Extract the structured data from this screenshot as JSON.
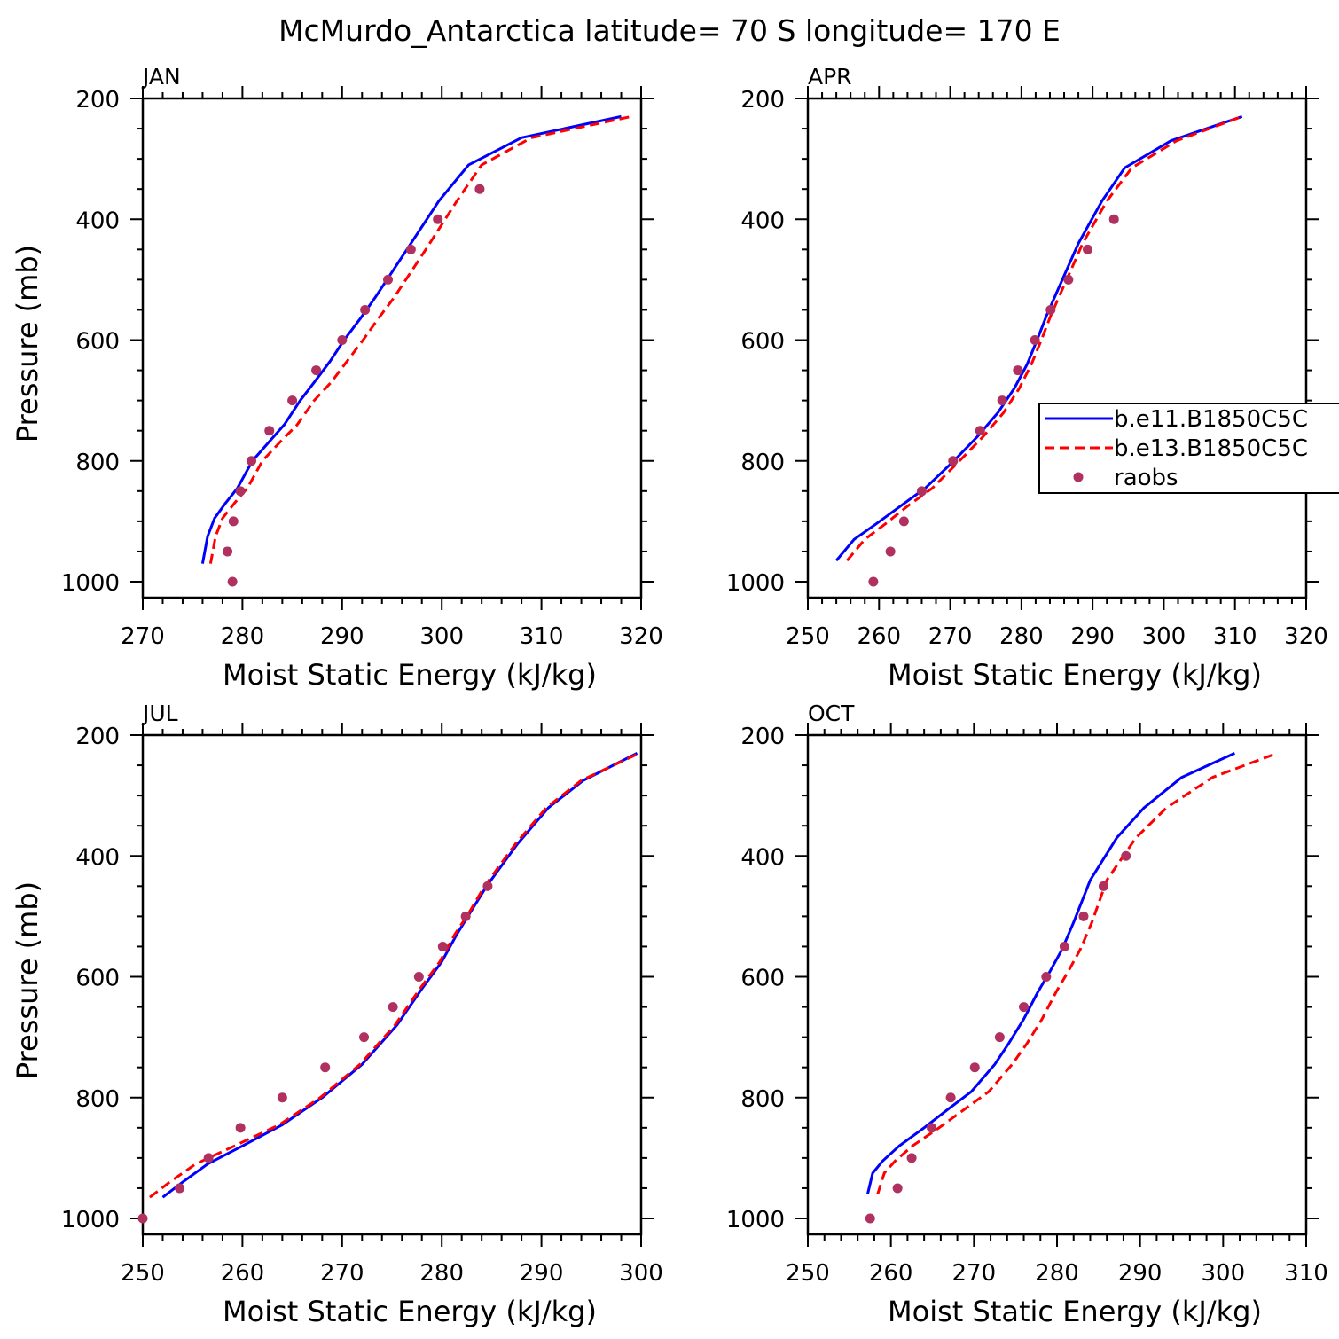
{
  "title": "McMurdo_Antarctica  latitude= 70 S longitude= 170 E",
  "legend": {
    "entries": [
      {
        "label": "b.e11.B1850C5C",
        "color": "#0000ff",
        "style": "solid"
      },
      {
        "label": "b.e13.B1850C5C",
        "color": "#ff0000",
        "style": "dashed"
      },
      {
        "label": "raobs",
        "color": "#b03060",
        "style": "dot"
      }
    ]
  },
  "chart_data": [
    {
      "type": "line",
      "title": "JAN",
      "xlabel": "Moist Static Energy (kJ/kg)",
      "ylabel": "Pressure (mb)",
      "xlim": [
        270,
        320
      ],
      "ylim": [
        1000,
        200
      ],
      "xticks": [
        270,
        280,
        290,
        300,
        310,
        320
      ],
      "yticks": [
        200,
        400,
        600,
        800,
        1000
      ],
      "series": [
        {
          "name": "b.e11.B1850C5C",
          "color": "#0000ff",
          "style": "solid",
          "x": [
            276.0,
            276.5,
            277.2,
            278.3,
            279.5,
            281.0,
            282.6,
            284.2,
            285.8,
            287.2,
            288.8,
            290.2,
            291.8,
            293.3,
            294.9,
            296.5,
            299.7,
            302.7,
            308.0,
            318.0
          ],
          "y": [
            970,
            925,
            895,
            870,
            845,
            800,
            770,
            740,
            700,
            670,
            635,
            600,
            565,
            530,
            490,
            450,
            370,
            310,
            265,
            230
          ]
        },
        {
          "name": "b.e13.B1850C5C",
          "color": "#ff0000",
          "style": "dashed",
          "x": [
            276.8,
            277.3,
            278.0,
            279.2,
            280.5,
            282.0,
            283.7,
            285.5,
            287.2,
            288.9,
            290.5,
            292.1,
            293.6,
            295.2,
            296.8,
            298.4,
            301.5,
            304.0,
            309.0,
            319.0
          ],
          "y": [
            970,
            925,
            895,
            870,
            845,
            800,
            770,
            740,
            700,
            670,
            635,
            600,
            565,
            530,
            490,
            450,
            370,
            310,
            265,
            230
          ]
        },
        {
          "name": "raobs",
          "color": "#b03060",
          "style": "dot",
          "x": [
            279.0,
            278.5,
            279.1,
            279.8,
            280.9,
            282.7,
            285.0,
            287.4,
            290.0,
            292.3,
            294.6,
            296.9,
            299.6,
            303.8
          ],
          "y": [
            1000,
            950,
            900,
            850,
            800,
            750,
            700,
            650,
            600,
            550,
            500,
            450,
            400,
            350
          ]
        }
      ]
    },
    {
      "type": "line",
      "title": "APR",
      "xlabel": "Moist Static Energy (kJ/kg)",
      "ylabel": "",
      "xlim": [
        250,
        320
      ],
      "ylim": [
        1000,
        200
      ],
      "xticks": [
        250,
        260,
        270,
        280,
        290,
        300,
        310,
        320
      ],
      "yticks": [
        200,
        400,
        600,
        800,
        1000
      ],
      "series": [
        {
          "name": "b.e11.B1850C5C",
          "color": "#0000ff",
          "style": "solid",
          "x": [
            254.0,
            256.5,
            259.5,
            263.0,
            266.5,
            270.5,
            273.8,
            276.7,
            279.0,
            280.8,
            282.2,
            283.5,
            285.0,
            286.5,
            288.0,
            291.3,
            294.5,
            301.0,
            311.0
          ],
          "y": [
            965,
            930,
            905,
            875,
            845,
            800,
            760,
            720,
            680,
            640,
            600,
            560,
            520,
            480,
            440,
            370,
            315,
            270,
            230
          ]
        },
        {
          "name": "b.e13.B1850C5C",
          "color": "#ff0000",
          "style": "dashed",
          "x": [
            255.5,
            258.0,
            260.8,
            264.0,
            267.5,
            271.3,
            274.6,
            277.5,
            279.7,
            281.4,
            282.8,
            284.1,
            285.6,
            287.1,
            288.6,
            292.0,
            295.5,
            301.8,
            311.0
          ],
          "y": [
            965,
            930,
            905,
            875,
            845,
            800,
            760,
            720,
            680,
            640,
            600,
            560,
            520,
            480,
            440,
            370,
            315,
            270,
            230
          ]
        },
        {
          "name": "raobs",
          "color": "#b03060",
          "style": "dot",
          "x": [
            259.2,
            261.6,
            263.5,
            266.0,
            270.4,
            274.2,
            277.3,
            279.5,
            281.9,
            284.1,
            286.6,
            289.3,
            293.0
          ],
          "y": [
            1000,
            950,
            900,
            850,
            800,
            750,
            700,
            650,
            600,
            550,
            500,
            450,
            400
          ]
        }
      ]
    },
    {
      "type": "line",
      "title": "JUL",
      "xlabel": "Moist Static Energy (kJ/kg)",
      "ylabel": "Pressure (mb)",
      "xlim": [
        250,
        300
      ],
      "ylim": [
        1000,
        200
      ],
      "xticks": [
        250,
        260,
        270,
        280,
        290,
        300
      ],
      "yticks": [
        200,
        400,
        600,
        800,
        1000
      ],
      "series": [
        {
          "name": "b.e11.B1850C5C",
          "color": "#0000ff",
          "style": "solid",
          "x": [
            252.0,
            254.0,
            256.5,
            260.0,
            264.0,
            268.0,
            272.0,
            275.5,
            278.0,
            280.0,
            281.5,
            282.8,
            284.5,
            287.6,
            290.7,
            294.2,
            299.6
          ],
          "y": [
            965,
            940,
            910,
            880,
            845,
            800,
            745,
            680,
            620,
            575,
            530,
            495,
            450,
            380,
            320,
            275,
            230
          ]
        },
        {
          "name": "b.e13.B1850C5C",
          "color": "#ff0000",
          "style": "dashed",
          "x": [
            250.7,
            252.7,
            255.3,
            259.2,
            263.7,
            267.8,
            271.8,
            275.3,
            277.8,
            279.8,
            281.3,
            282.7,
            284.3,
            287.4,
            290.5,
            294.0,
            299.8
          ],
          "y": [
            965,
            940,
            910,
            880,
            845,
            800,
            745,
            680,
            620,
            575,
            530,
            495,
            450,
            380,
            320,
            275,
            230
          ]
        },
        {
          "name": "raobs",
          "color": "#b03060",
          "style": "dot",
          "x": [
            250.0,
            253.7,
            256.6,
            259.8,
            264.0,
            268.3,
            272.2,
            275.1,
            277.7,
            280.1,
            282.4,
            284.6
          ],
          "y": [
            1000,
            950,
            900,
            850,
            800,
            750,
            700,
            650,
            600,
            550,
            500,
            450
          ]
        }
      ]
    },
    {
      "type": "line",
      "title": "OCT",
      "xlabel": "Moist Static Energy (kJ/kg)",
      "ylabel": "",
      "xlim": [
        250,
        310
      ],
      "ylim": [
        1000,
        200
      ],
      "xticks": [
        250,
        260,
        270,
        280,
        290,
        300,
        310
      ],
      "yticks": [
        200,
        400,
        600,
        800,
        1000
      ],
      "series": [
        {
          "name": "b.e11.B1850C5C",
          "color": "#0000ff",
          "style": "solid",
          "x": [
            257.2,
            257.8,
            259.0,
            261.0,
            264.0,
            266.8,
            269.7,
            272.5,
            274.2,
            276.0,
            277.7,
            279.2,
            280.6,
            282.0,
            284.0,
            287.2,
            290.5,
            295.0,
            301.4
          ],
          "y": [
            960,
            925,
            905,
            880,
            850,
            820,
            790,
            745,
            710,
            670,
            625,
            590,
            555,
            510,
            440,
            370,
            320,
            270,
            230
          ]
        },
        {
          "name": "b.e13.B1850C5C",
          "color": "#ff0000",
          "style": "dashed",
          "x": [
            258.4,
            259.2,
            260.5,
            262.6,
            265.8,
            268.8,
            271.8,
            274.6,
            276.4,
            278.2,
            279.9,
            281.4,
            282.8,
            284.2,
            286.0,
            289.5,
            293.2,
            298.7,
            306.5
          ],
          "y": [
            960,
            925,
            905,
            880,
            850,
            820,
            790,
            745,
            710,
            670,
            625,
            590,
            555,
            510,
            440,
            370,
            320,
            270,
            230
          ]
        },
        {
          "name": "raobs",
          "color": "#b03060",
          "style": "dot",
          "x": [
            257.5,
            260.8,
            262.5,
            264.9,
            267.2,
            270.1,
            273.1,
            276.0,
            278.7,
            280.9,
            283.2,
            285.6,
            288.3
          ],
          "y": [
            1000,
            950,
            900,
            850,
            800,
            750,
            700,
            650,
            600,
            550,
            500,
            450,
            400
          ]
        }
      ]
    }
  ]
}
